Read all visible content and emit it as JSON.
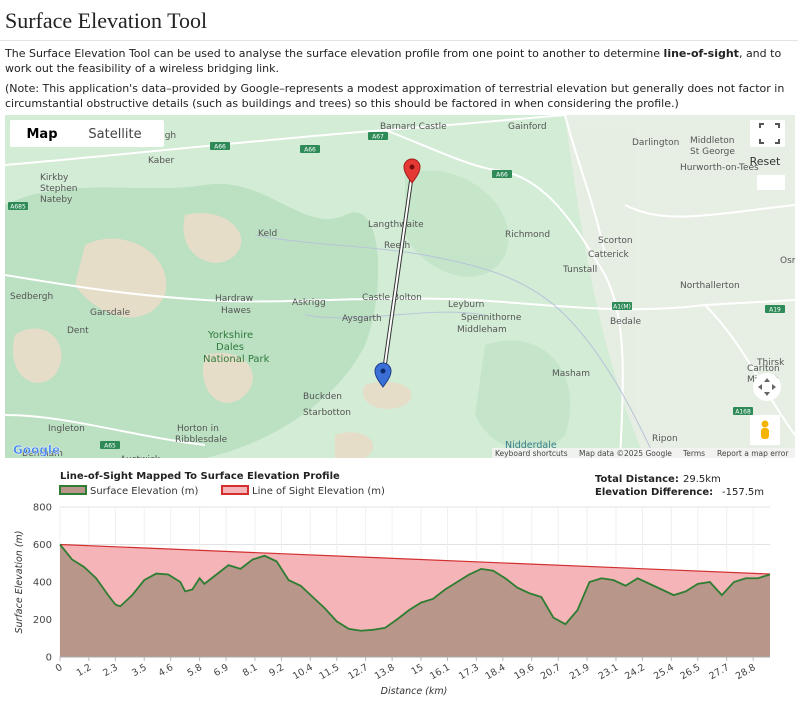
{
  "header": {
    "title": "Surface Elevation Tool"
  },
  "intro": {
    "before": "The Surface Elevation Tool can be used to analyse the surface elevation profile from one point to another to determine ",
    "bold": "line-of-sight",
    "after": ", and to work out the feasibility of a wireless bridging link."
  },
  "note": "(Note: This application's data–provided by Google–represents a modest approximation of terrestrial elevation but generally does not factor in circumstantial obstructive details (such as buildings and trees) so this should be factored in when considering the profile.)",
  "map": {
    "tabs": [
      "Map",
      "Satellite"
    ],
    "reset": "Reset",
    "logo": "Google",
    "places": [
      "rough",
      "Barnard Castle",
      "Gainford",
      "Darlington",
      "Middleton",
      "St George",
      "Hurworth-on-Tees",
      "Kaber",
      "Kirkby",
      "Stephen",
      "Nateby",
      "Langthwaite",
      "Keld",
      "Reeth",
      "Richmond",
      "Scorton",
      "Catterick",
      "Tunstall",
      "Osmo",
      "Northallerton",
      "Sedbergh",
      "Hardraw",
      "Hawes",
      "Askrigg",
      "Castle Bolton",
      "Leyburn",
      "Spennithorne",
      "Middleham",
      "Garsdale",
      "Aysgarth",
      "Bedale",
      "Dent",
      "Yorkshire",
      "Dales",
      "National Park",
      "Masham",
      "Carlton",
      "Miniott",
      "Thirsk",
      "Buckden",
      "Starbotton",
      "Ingleton",
      "Horton in",
      "Ribblesdale",
      "Ripon",
      "Nidderdale",
      "Bentham",
      "Austwick"
    ],
    "roads": [
      "A67",
      "A66",
      "A66",
      "A66",
      "A685",
      "A1(M)",
      "A19",
      "A168",
      "A65"
    ],
    "footer": [
      "Keyboard shortcuts",
      "Map data ©2025 Google",
      "Terms",
      "Report a map error"
    ]
  },
  "stats": {
    "distance_label": "Total Distance:",
    "distance_value": "29.5km",
    "difference_label": "Elevation Difference:",
    "difference_value": "-157.5m"
  },
  "chart_data": {
    "type": "area",
    "title": "Line-of-Sight Mapped To Surface Elevation Profile",
    "x_label": "Distance (km)",
    "y_label": "Surface Elevation (m)",
    "xlim": [
      0,
      29.5
    ],
    "xticks": [
      0,
      1.2,
      2.3,
      3.5,
      4.6,
      5.8,
      6.9,
      8.1,
      9.2,
      10.4,
      11.5,
      12.7,
      13.8,
      15,
      16.1,
      17.3,
      18.4,
      19.6,
      20.7,
      21.9,
      23.1,
      24.2,
      25.4,
      26.5,
      27.7,
      28.8
    ],
    "ylim": [
      0,
      800
    ],
    "yticks": [
      0,
      200,
      400,
      600,
      800
    ],
    "grid": true,
    "series": [
      {
        "name": "Surface Elevation (m)",
        "color": "#2e7d32",
        "fill": "#b8978a",
        "x": [
          0,
          0.5,
          1,
          1.5,
          2,
          2.3,
          2.5,
          3,
          3.5,
          4,
          4.5,
          5,
          5.2,
          5.5,
          5.8,
          6,
          6.5,
          7,
          7.5,
          8,
          8.5,
          9,
          9.5,
          10,
          10.5,
          11,
          11.5,
          12,
          12.5,
          13,
          13.5,
          14,
          14.5,
          15,
          15.5,
          16,
          16.5,
          17,
          17.5,
          18,
          18.5,
          19,
          19.5,
          20,
          20.5,
          21,
          21.5,
          22,
          22.5,
          23,
          23.5,
          24,
          24.5,
          25,
          25.5,
          26,
          26.5,
          27,
          27.5,
          28,
          28.5,
          29,
          29.5
        ],
        "values": [
          600,
          520,
          480,
          420,
          330,
          280,
          270,
          330,
          410,
          445,
          440,
          400,
          350,
          360,
          420,
          390,
          440,
          490,
          470,
          520,
          540,
          510,
          410,
          380,
          320,
          260,
          190,
          150,
          140,
          145,
          155,
          200,
          250,
          290,
          310,
          360,
          400,
          440,
          470,
          460,
          420,
          370,
          340,
          320,
          210,
          175,
          250,
          400,
          420,
          410,
          380,
          420,
          390,
          360,
          330,
          350,
          390,
          400,
          330,
          400,
          420,
          420,
          440
        ]
      },
      {
        "name": "Line of Sight Elevation (m)",
        "color": "#d32f2f",
        "fill": "#f5b5b8",
        "x": [
          0,
          29.5
        ],
        "values": [
          600,
          442.5
        ]
      }
    ]
  }
}
